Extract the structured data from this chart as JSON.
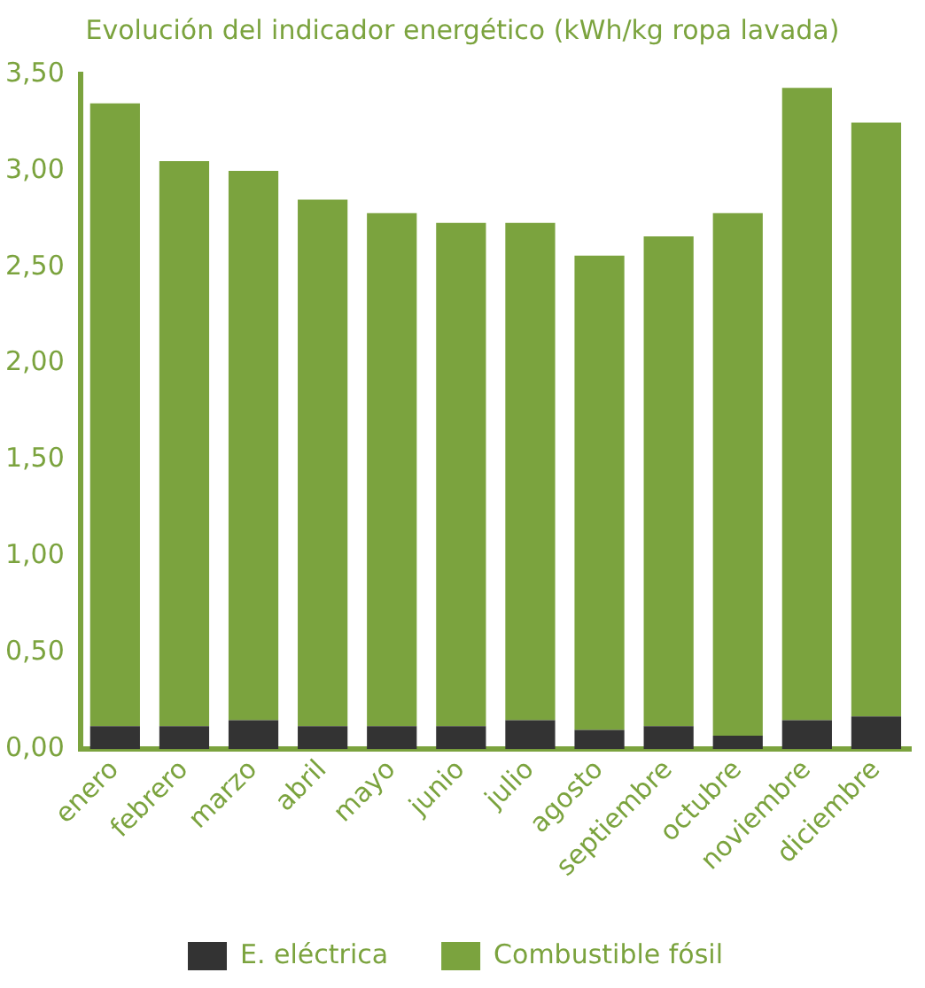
{
  "chart_data": {
    "type": "bar",
    "title": "Evolución del indicador energético (kWh/kg ropa lavada)",
    "categories": [
      "enero",
      "febrero",
      "marzo",
      "abril",
      "mayo",
      "junio",
      "julio",
      "agosto",
      "septiembre",
      "octubre",
      "noviembre",
      "diciembre"
    ],
    "series": [
      {
        "name": "E. eléctrica",
        "color": "#333333",
        "values": [
          0.12,
          0.12,
          0.15,
          0.12,
          0.12,
          0.12,
          0.15,
          0.1,
          0.12,
          0.07,
          0.15,
          0.17
        ]
      },
      {
        "name": "Combustible fósil",
        "color": "#7ba33e",
        "values": [
          3.23,
          2.93,
          2.85,
          2.73,
          2.66,
          2.61,
          2.58,
          2.46,
          2.54,
          2.71,
          3.28,
          3.08
        ]
      }
    ],
    "stacked": true,
    "ylim": [
      0,
      3.5
    ],
    "yticks": [
      {
        "value": 0,
        "label": "0,00"
      },
      {
        "value": 0.5,
        "label": "0,50"
      },
      {
        "value": 1,
        "label": "1,00"
      },
      {
        "value": 1.5,
        "label": "1,50"
      },
      {
        "value": 2,
        "label": "2,00"
      },
      {
        "value": 2.5,
        "label": "2,50"
      },
      {
        "value": 3,
        "label": "3,00"
      },
      {
        "value": 3.5,
        "label": "3,50"
      }
    ],
    "grid": false,
    "legend": "bottom"
  }
}
